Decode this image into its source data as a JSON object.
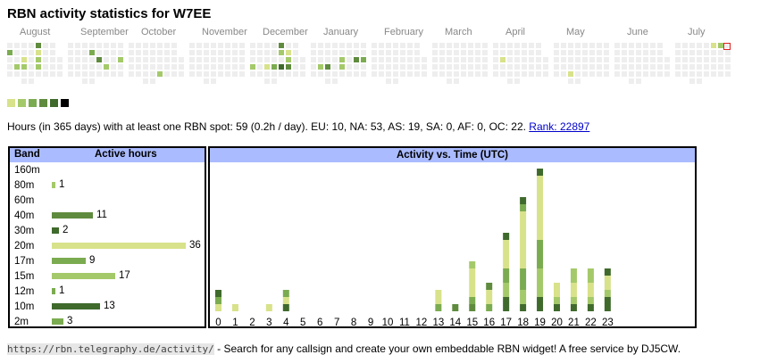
{
  "title": "RBN activity statistics for W7EE",
  "colors": {
    "empty": "#eeeeee",
    "levels": [
      "#d8e28a",
      "#a4c96a",
      "#7bab50",
      "#5f8b3e",
      "#3f6a2c",
      "#000000"
    ],
    "header_bg": "#aabbff",
    "today_marker": "#dd2222"
  },
  "heatmap": {
    "months": [
      "August",
      "September",
      "October",
      "November",
      "December",
      "January",
      "February",
      "March",
      "April",
      "May",
      "June",
      "July"
    ],
    "active_days": [
      {
        "week": 4,
        "day": 0,
        "level": 3
      },
      {
        "week": 0,
        "day": 1,
        "level": 2
      },
      {
        "week": 4,
        "day": 1,
        "level": 0
      },
      {
        "week": 2,
        "day": 2,
        "level": 0
      },
      {
        "week": 4,
        "day": 2,
        "level": 1
      },
      {
        "week": 1,
        "day": 3,
        "level": 1
      },
      {
        "week": 2,
        "day": 3,
        "level": 1
      },
      {
        "week": 4,
        "day": 3,
        "level": 1
      },
      {
        "week": 11,
        "day": 1,
        "level": 2
      },
      {
        "week": 12,
        "day": 2,
        "level": 3
      },
      {
        "week": 15,
        "day": 2,
        "level": 1
      },
      {
        "week": 13,
        "day": 3,
        "level": 1
      },
      {
        "week": 20,
        "day": 4,
        "level": 1
      },
      {
        "week": 36,
        "day": 0,
        "level": 3
      },
      {
        "week": 37,
        "day": 1,
        "level": 0
      },
      {
        "week": 36,
        "day": 1,
        "level": 1
      },
      {
        "week": 37,
        "day": 2,
        "level": 1
      },
      {
        "week": 32,
        "day": 3,
        "level": 1
      },
      {
        "week": 34,
        "day": 3,
        "level": 0
      },
      {
        "week": 35,
        "day": 3,
        "level": 2
      },
      {
        "week": 36,
        "day": 3,
        "level": 4
      },
      {
        "week": 37,
        "day": 3,
        "level": 3
      },
      {
        "week": 44,
        "day": 2,
        "level": 1
      },
      {
        "week": 46,
        "day": 2,
        "level": 3
      },
      {
        "week": 47,
        "day": 2,
        "level": 2
      },
      {
        "week": 41,
        "day": 3,
        "level": 1
      },
      {
        "week": 42,
        "day": 3,
        "level": 3
      },
      {
        "week": 44,
        "day": 3,
        "level": 1
      },
      {
        "week": 65,
        "day": 2,
        "level": 0
      },
      {
        "week": 74,
        "day": 4,
        "level": 0
      },
      {
        "week": 93,
        "day": 0,
        "level": 0
      },
      {
        "week": 94,
        "day": 0,
        "level": 1
      },
      {
        "week": 96,
        "day": 2,
        "level": 0
      }
    ]
  },
  "summary": {
    "text": "Hours (in 365 days) with at least one RBN spot: 59 (0.2h / day). EU: 10, NA: 53, AS: 19, SA: 0, AF: 0, OC: 22.",
    "rank_label": "Rank: 22897"
  },
  "bands": {
    "header_band": "Band",
    "header_hours": "Active hours",
    "rows": [
      {
        "band": "160m",
        "hours": null,
        "level": 0,
        "hours_label": ""
      },
      {
        "band": "80m",
        "hours": 1,
        "level": 1,
        "hours_label": "1"
      },
      {
        "band": "60m",
        "hours": null,
        "level": 0,
        "hours_label": ""
      },
      {
        "band": "40m",
        "hours": 11,
        "level": 3,
        "hours_label": "11"
      },
      {
        "band": "30m",
        "hours": 2,
        "level": 4,
        "hours_label": "2"
      },
      {
        "band": "20m",
        "hours": 36,
        "level": 0,
        "hours_label": "36"
      },
      {
        "band": "17m",
        "hours": 9,
        "level": 2,
        "hours_label": "9"
      },
      {
        "band": "15m",
        "hours": 17,
        "level": 1,
        "hours_label": "17"
      },
      {
        "band": "12m",
        "hours": 1,
        "level": 2,
        "hours_label": "1"
      },
      {
        "band": "10m",
        "hours": 13,
        "level": 4,
        "hours_label": "13"
      },
      {
        "band": "2m",
        "hours": 3,
        "level": 2,
        "hours_label": "3"
      }
    ]
  },
  "chart_data": {
    "type": "bar",
    "title": "Activity vs. Time (UTC)",
    "xlabel": "",
    "ylabel": "",
    "categories": [
      "0",
      "1",
      "2",
      "3",
      "4",
      "5",
      "6",
      "7",
      "8",
      "9",
      "10",
      "11",
      "12",
      "13",
      "14",
      "15",
      "16",
      "17",
      "18",
      "19",
      "20",
      "21",
      "22",
      "23"
    ],
    "values": [
      3,
      1,
      0,
      1,
      3,
      0,
      0,
      0,
      0,
      0,
      0,
      0,
      0,
      3,
      1,
      7,
      4,
      11,
      16,
      20,
      4,
      6,
      6,
      6
    ],
    "segments": [
      [
        [
          0,
          1
        ],
        [
          2,
          1
        ],
        [
          4,
          1
        ]
      ],
      [
        [
          0,
          1
        ]
      ],
      [],
      [
        [
          0,
          1
        ]
      ],
      [
        [
          4,
          1
        ],
        [
          0,
          1
        ],
        [
          2,
          1
        ]
      ],
      [],
      [],
      [],
      [],
      [],
      [],
      [],
      [],
      [
        [
          2,
          1
        ],
        [
          0,
          2
        ]
      ],
      [
        [
          3,
          1
        ]
      ],
      [
        [
          3,
          1
        ],
        [
          2,
          1
        ],
        [
          0,
          4
        ],
        [
          1,
          1
        ]
      ],
      [
        [
          2,
          1
        ],
        [
          0,
          2
        ],
        [
          3,
          1
        ]
      ],
      [
        [
          4,
          2
        ],
        [
          1,
          2
        ],
        [
          2,
          2
        ],
        [
          0,
          4
        ],
        [
          4,
          1
        ]
      ],
      [
        [
          4,
          1
        ],
        [
          1,
          2
        ],
        [
          2,
          3
        ],
        [
          0,
          8
        ],
        [
          2,
          1
        ],
        [
          4,
          1
        ]
      ],
      [
        [
          4,
          2
        ],
        [
          1,
          4
        ],
        [
          2,
          4
        ],
        [
          0,
          9
        ],
        [
          4,
          1
        ]
      ],
      [
        [
          4,
          1
        ],
        [
          1,
          1
        ],
        [
          0,
          2
        ]
      ],
      [
        [
          4,
          1
        ],
        [
          1,
          1
        ],
        [
          0,
          2
        ],
        [
          1,
          2
        ]
      ],
      [
        [
          4,
          1
        ],
        [
          1,
          1
        ],
        [
          0,
          2
        ],
        [
          1,
          2
        ]
      ],
      [
        [
          4,
          2
        ],
        [
          1,
          1
        ],
        [
          0,
          2
        ],
        [
          4,
          1
        ]
      ]
    ],
    "ylim": [
      0,
      20
    ]
  },
  "footer": {
    "url": "https://rbn.telegraphy.de/activity/",
    "text": " - Search for any callsign and create your own embeddable RBN widget! A free service by DJ5CW."
  }
}
